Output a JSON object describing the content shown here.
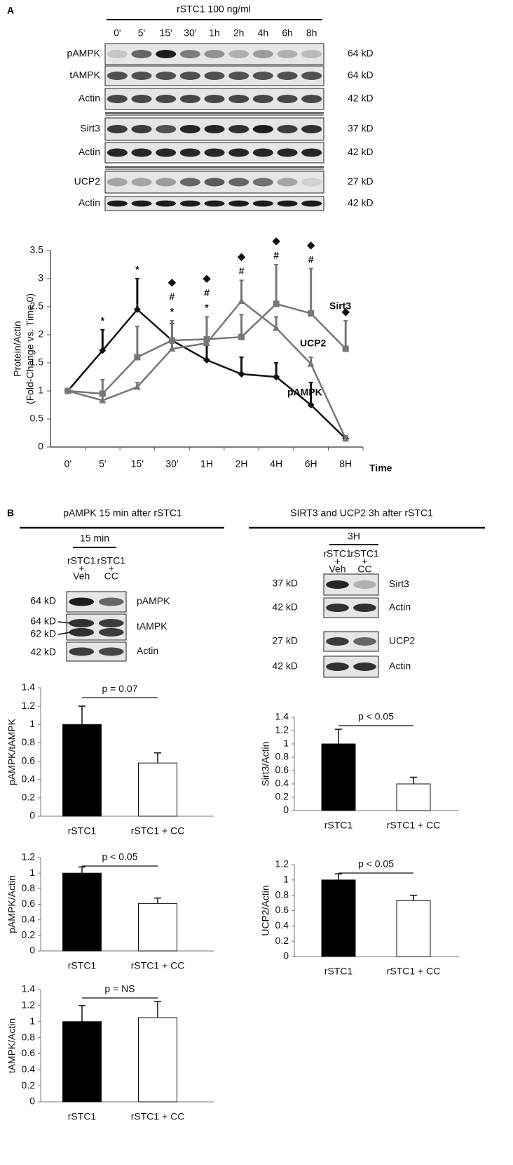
{
  "panel_a": {
    "label": "A",
    "header": "rSTC1 100 ng/ml",
    "lanes": [
      "0'",
      "5'",
      "15'",
      "30'",
      "1h",
      "2h",
      "4h",
      "6h",
      "8h"
    ],
    "rows": [
      {
        "name": "pAMPK",
        "size": "64 kD"
      },
      {
        "name": "tAMPK",
        "size": "64 kD"
      },
      {
        "name": "Actin",
        "size": "42 kD"
      },
      {
        "name": "Sirt3",
        "size": "37 kD"
      },
      {
        "name": "Actin",
        "size": "42 kD"
      },
      {
        "name": "UCP2",
        "size": "27 kD"
      },
      {
        "name": "Actin",
        "size": "42 kD"
      }
    ]
  },
  "panel_b": {
    "label": "B",
    "left": {
      "title": "pAMPK 15 min after rSTC1",
      "header": "15 min",
      "lanes": [
        [
          "rSTC1",
          "+",
          "Veh"
        ],
        [
          "rSTC1",
          "+",
          "CC"
        ]
      ],
      "rows": [
        {
          "name": "pAMPK",
          "sizes": [
            "64 kD"
          ]
        },
        {
          "name": "tAMPK",
          "sizes": [
            "64 kD",
            "62 kD"
          ]
        },
        {
          "name": "Actin",
          "sizes": [
            "42 kD"
          ]
        }
      ]
    },
    "right": {
      "title": "SIRT3 and UCP2 3h after rSTC1",
      "header": "3H",
      "lanes": [
        [
          "rSTC1",
          "+",
          "Veh"
        ],
        [
          "rSTC1",
          "+",
          "CC"
        ]
      ],
      "rows": [
        {
          "name": "Sirt3",
          "sizes": [
            "37 kD"
          ]
        },
        {
          "name": "Actin",
          "sizes": [
            "42 kD"
          ]
        },
        {
          "name": "UCP2",
          "sizes": [
            "27 kD"
          ]
        },
        {
          "name": "Actin",
          "sizes": [
            "42 kD"
          ]
        }
      ]
    }
  },
  "chart_data": [
    {
      "type": "line",
      "categories": [
        "0'",
        "5'",
        "15'",
        "30'",
        "1H",
        "2H",
        "4H",
        "6H",
        "8H"
      ],
      "xlabel": "Time",
      "ylabel": [
        "Protein/Actin",
        "(Fold-Change vs. Time 0)"
      ],
      "ylim": [
        0,
        3.5
      ],
      "yticks": [
        0,
        0.5,
        1,
        1.5,
        2,
        2.5,
        3,
        3.5
      ],
      "series": [
        {
          "name": "pAMPK",
          "color": "#111111",
          "marker": "diamond",
          "values": [
            1.0,
            1.72,
            2.45,
            1.9,
            1.55,
            1.3,
            1.25,
            0.75,
            0.15
          ],
          "errors": [
            null,
            0.37,
            0.55,
            0.3,
            0.35,
            0.3,
            0.25,
            0.4,
            0.05
          ]
        },
        {
          "name": "Sirt3",
          "color": "#777777",
          "marker": "square",
          "values": [
            1.0,
            0.95,
            1.6,
            1.9,
            1.92,
            1.96,
            2.55,
            2.38,
            1.75
          ],
          "errors": [
            null,
            0.25,
            0.55,
            0.35,
            0.4,
            0.4,
            0.7,
            0.8,
            0.5
          ]
        },
        {
          "name": "UCP2",
          "color": "#777777",
          "marker": "triangle",
          "values": [
            1.0,
            0.83,
            1.07,
            1.75,
            1.85,
            2.6,
            2.12,
            1.48,
            0.15
          ],
          "errors": [
            null,
            0.1,
            0.08,
            0.1,
            0.1,
            0.37,
            0.2,
            0.12,
            0.05
          ]
        }
      ],
      "annotations": [
        null,
        [
          "*"
        ],
        [
          "*"
        ],
        [
          "◆",
          "#",
          "*"
        ],
        [
          "◆",
          "#",
          "*"
        ],
        [
          "◆",
          "#"
        ],
        [
          "◆",
          "#"
        ],
        [
          "◆",
          "#"
        ],
        [
          "◆"
        ]
      ]
    },
    {
      "type": "bar",
      "ylabel": "pAMPK/tAMPK",
      "categories": [
        "rSTC1",
        "rSTC1 + CC"
      ],
      "values": [
        1.0,
        0.58
      ],
      "errors": [
        0.2,
        0.11
      ],
      "colors": [
        "#000000",
        "#ffffff"
      ],
      "ylim": [
        0,
        1.4
      ],
      "yticks": [
        0,
        0.2,
        0.4,
        0.6,
        0.8,
        1,
        1.2,
        1.4
      ],
      "annotation": "p = 0.07"
    },
    {
      "type": "bar",
      "ylabel": "pAMPK/Actin",
      "categories": [
        "rSTC1",
        "rSTC1 + CC"
      ],
      "values": [
        1.0,
        0.61
      ],
      "errors": [
        0.08,
        0.07
      ],
      "colors": [
        "#000000",
        "#ffffff"
      ],
      "ylim": [
        0,
        1.2
      ],
      "yticks": [
        0,
        0.2,
        0.4,
        0.6,
        0.8,
        1,
        1.2
      ],
      "annotation": "p < 0.05"
    },
    {
      "type": "bar",
      "ylabel": "tAMPK/Actin",
      "categories": [
        "rSTC1",
        "rSTC1 + CC"
      ],
      "values": [
        1.0,
        1.05
      ],
      "errors": [
        0.2,
        0.2
      ],
      "colors": [
        "#000000",
        "#ffffff"
      ],
      "ylim": [
        0,
        1.4
      ],
      "yticks": [
        0,
        0.2,
        0.4,
        0.6,
        0.8,
        1,
        1.2,
        1.4
      ],
      "annotation": "p = NS"
    },
    {
      "type": "bar",
      "ylabel": "Sirt3/Actin",
      "categories": [
        "rSTC1",
        "rSTC1 + CC"
      ],
      "values": [
        1.0,
        0.4
      ],
      "errors": [
        0.22,
        0.1
      ],
      "colors": [
        "#000000",
        "#ffffff"
      ],
      "ylim": [
        0,
        1.4
      ],
      "yticks": [
        0,
        0.2,
        0.4,
        0.6,
        0.8,
        1,
        1.2,
        1.4
      ],
      "annotation": "p < 0.05"
    },
    {
      "type": "bar",
      "ylabel": "UCP2/Actin",
      "categories": [
        "rSTC1",
        "rSTC1 + CC"
      ],
      "values": [
        1.0,
        0.73
      ],
      "errors": [
        0.08,
        0.07
      ],
      "colors": [
        "#000000",
        "#ffffff"
      ],
      "ylim": [
        0,
        1.2
      ],
      "yticks": [
        0,
        0.2,
        0.4,
        0.6,
        0.8,
        1,
        1.2
      ],
      "annotation": "p < 0.05"
    }
  ]
}
